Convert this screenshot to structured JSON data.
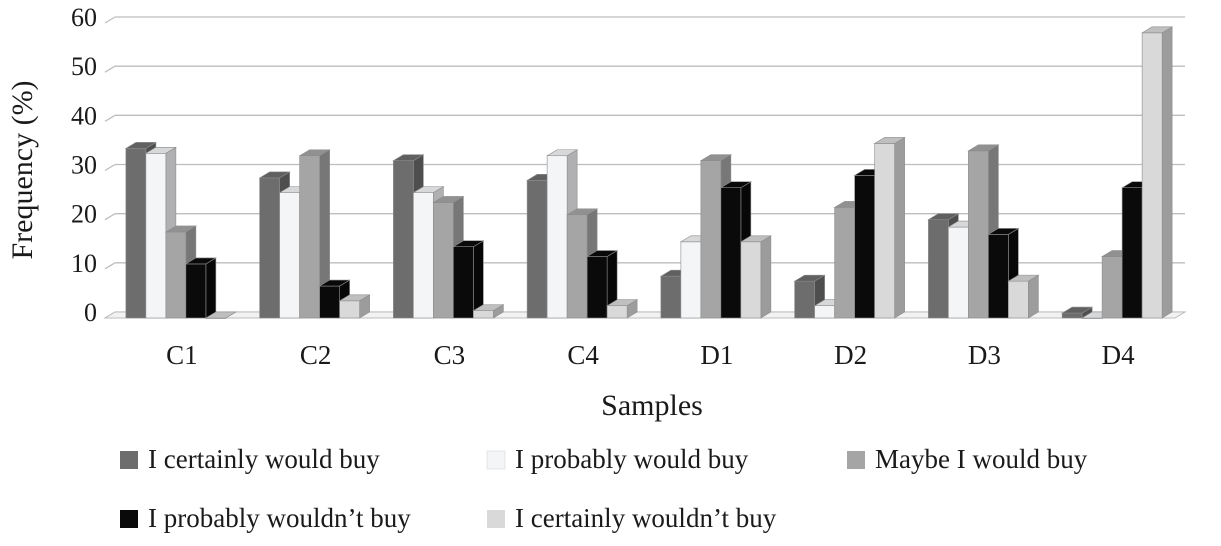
{
  "chart_data": {
    "type": "bar",
    "style": "3d-clustered-column",
    "xlabel": "Samples",
    "ylabel": "Frequency (%)",
    "ylim": [
      0,
      60
    ],
    "yticks": [
      0,
      10,
      20,
      30,
      40,
      50,
      60
    ],
    "grid": true,
    "legend_position": "bottom",
    "categories": [
      "C1",
      "C2",
      "C3",
      "C4",
      "D1",
      "D2",
      "D3",
      "D4"
    ],
    "series": [
      {
        "name": "I certainly would buy",
        "color": "#6d6d6d",
        "values": [
          34.5,
          28.5,
          32,
          28,
          8.5,
          7.5,
          20,
          1
        ]
      },
      {
        "name": "I probably would buy",
        "color": "#f4f5f7",
        "values": [
          33.5,
          25.5,
          25.5,
          33,
          15.5,
          2.5,
          18.5,
          0
        ]
      },
      {
        "name": "Maybe I would buy",
        "color": "#a5a5a5",
        "values": [
          17.5,
          33,
          23.5,
          21,
          32,
          22.5,
          34,
          12.5
        ]
      },
      {
        "name": "I probably wouldn’t buy",
        "color": "#0a0a0a",
        "values": [
          11,
          6.5,
          14.5,
          12.5,
          26.5,
          29,
          17,
          26.5
        ]
      },
      {
        "name": "I certainly wouldn’t buy",
        "color": "#d9d9d9",
        "values": [
          0,
          3.5,
          1.5,
          2.5,
          15.5,
          35.5,
          7.5,
          58
        ]
      }
    ]
  }
}
